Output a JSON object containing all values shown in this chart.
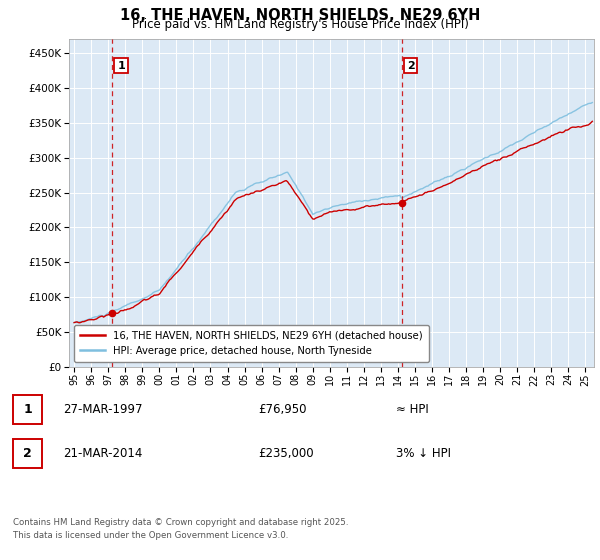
{
  "title": "16, THE HAVEN, NORTH SHIELDS, NE29 6YH",
  "subtitle": "Price paid vs. HM Land Registry's House Price Index (HPI)",
  "legend_line1": "16, THE HAVEN, NORTH SHIELDS, NE29 6YH (detached house)",
  "legend_line2": "HPI: Average price, detached house, North Tyneside",
  "annotation1_label": "1",
  "annotation1_date": "27-MAR-1997",
  "annotation1_price": "£76,950",
  "annotation1_hpi": "≈ HPI",
  "annotation2_label": "2",
  "annotation2_date": "21-MAR-2014",
  "annotation2_price": "£235,000",
  "annotation2_hpi": "3% ↓ HPI",
  "footnote": "Contains HM Land Registry data © Crown copyright and database right 2025.\nThis data is licensed under the Open Government Licence v3.0.",
  "bg_color": "#dce9f5",
  "line_color_red": "#cc0000",
  "line_color_blue": "#7fbfdf",
  "vline_color": "#cc0000",
  "ylim": [
    0,
    470000
  ],
  "yticks": [
    0,
    50000,
    100000,
    150000,
    200000,
    250000,
    300000,
    350000,
    400000,
    450000
  ],
  "xlim_start": 1994.7,
  "xlim_end": 2025.5,
  "xticks": [
    1995,
    1996,
    1997,
    1998,
    1999,
    2000,
    2001,
    2002,
    2003,
    2004,
    2005,
    2006,
    2007,
    2008,
    2009,
    2010,
    2011,
    2012,
    2013,
    2014,
    2015,
    2016,
    2017,
    2018,
    2019,
    2020,
    2021,
    2022,
    2023,
    2024,
    2025
  ],
  "marker1_x": 1997.23,
  "marker1_y": 76950,
  "marker2_x": 2014.22,
  "marker2_y": 235000,
  "vline1_x": 1997.23,
  "vline2_x": 2014.22
}
